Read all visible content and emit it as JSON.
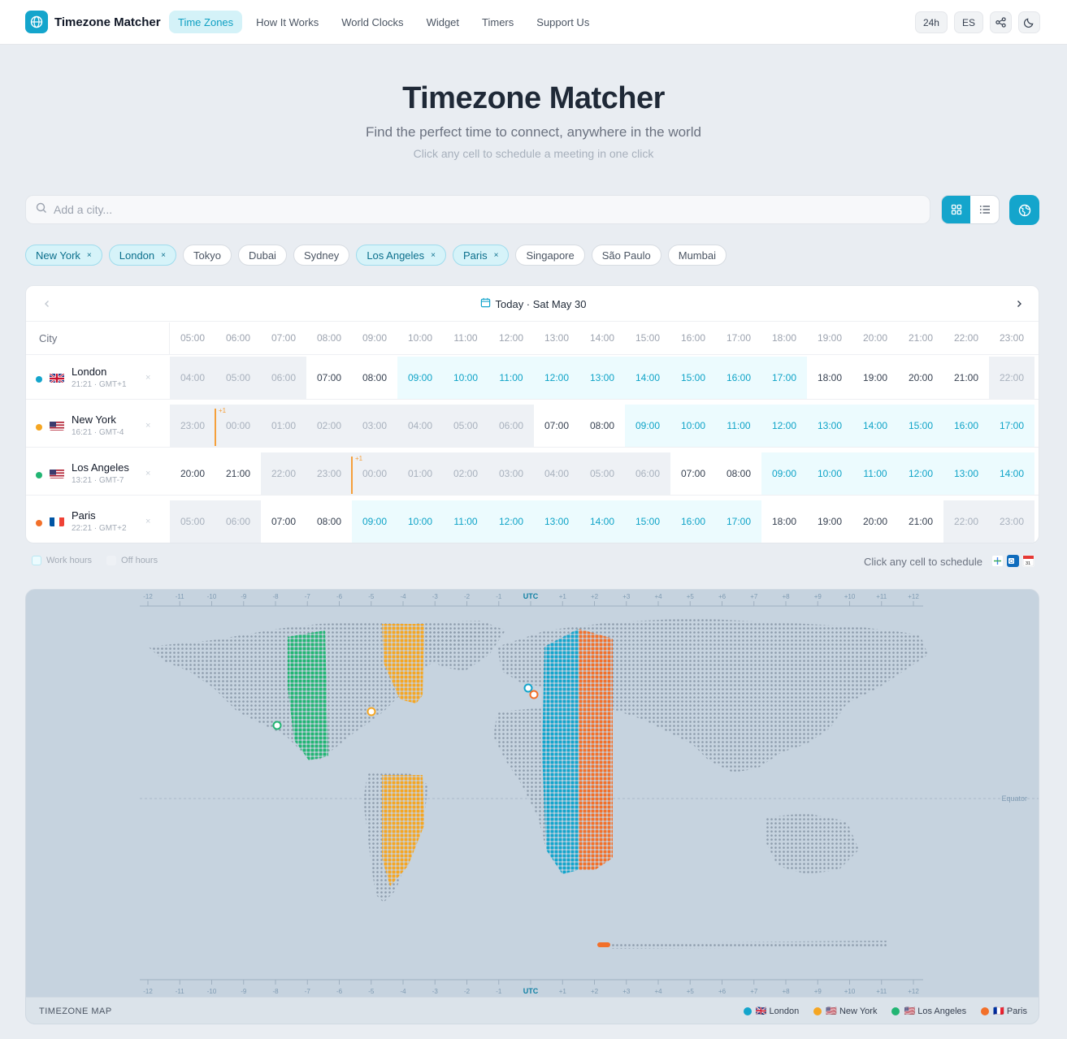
{
  "app": {
    "name": "Timezone Matcher",
    "brand_color": "#14a5cc"
  },
  "nav": [
    {
      "label": "Time Zones",
      "active": true
    },
    {
      "label": "How It Works",
      "active": false
    },
    {
      "label": "World Clocks",
      "active": false
    },
    {
      "label": "Widget",
      "active": false
    },
    {
      "label": "Timers",
      "active": false
    },
    {
      "label": "Support Us",
      "active": false
    }
  ],
  "header_controls": {
    "format": "24h",
    "language": "ES",
    "share_icon": "share-icon",
    "theme_icon": "moon-icon"
  },
  "hero": {
    "title": "Timezone Matcher",
    "subtitle": "Find the perfect time to connect, anywhere in the world",
    "hint": "Click any cell to schedule a meeting in one click"
  },
  "search": {
    "placeholder": "Add a city..."
  },
  "chips": [
    {
      "label": "New York",
      "selected": true
    },
    {
      "label": "London",
      "selected": true
    },
    {
      "label": "Tokyo",
      "selected": false
    },
    {
      "label": "Dubai",
      "selected": false
    },
    {
      "label": "Sydney",
      "selected": false
    },
    {
      "label": "Los Angeles",
      "selected": true
    },
    {
      "label": "Paris",
      "selected": true
    },
    {
      "label": "Singapore",
      "selected": false
    },
    {
      "label": "São Paulo",
      "selected": false
    },
    {
      "label": "Mumbai",
      "selected": false
    }
  ],
  "grid": {
    "date_label": "Today · Sat May 30",
    "city_header": "City",
    "hours": [
      "05:00",
      "06:00",
      "07:00",
      "08:00",
      "09:00",
      "10:00",
      "11:00",
      "12:00",
      "13:00",
      "14:00",
      "15:00",
      "16:00",
      "17:00",
      "18:00",
      "19:00",
      "20:00",
      "21:00",
      "22:00",
      "23:00"
    ],
    "rows": [
      {
        "name": "London",
        "meta": "21:21 · GMT+1",
        "color": "#14a5cc",
        "flag": "uk",
        "times": [
          "04:00",
          "05:00",
          "06:00",
          "07:00",
          "08:00",
          "09:00",
          "10:00",
          "11:00",
          "12:00",
          "13:00",
          "14:00",
          "15:00",
          "16:00",
          "17:00",
          "18:00",
          "19:00",
          "20:00",
          "21:00",
          "22:00"
        ],
        "kinds": [
          "off",
          "off",
          "off",
          "normal",
          "normal",
          "work",
          "work",
          "work",
          "work",
          "work",
          "work",
          "work",
          "work",
          "work",
          "normal",
          "normal",
          "normal",
          "normal",
          "off"
        ],
        "day_change_index": null
      },
      {
        "name": "New York",
        "meta": "16:21 · GMT-4",
        "color": "#f5a623",
        "flag": "us",
        "times": [
          "23:00",
          "00:00",
          "01:00",
          "02:00",
          "03:00",
          "04:00",
          "05:00",
          "06:00",
          "07:00",
          "08:00",
          "09:00",
          "10:00",
          "11:00",
          "12:00",
          "13:00",
          "14:00",
          "15:00",
          "16:00",
          "17:00"
        ],
        "kinds": [
          "off",
          "off",
          "off",
          "off",
          "off",
          "off",
          "off",
          "off",
          "normal",
          "normal",
          "work",
          "work",
          "work",
          "work",
          "work",
          "work",
          "work",
          "work",
          "work"
        ],
        "day_change_index": 1,
        "day_change_label": "+1"
      },
      {
        "name": "Los Angeles",
        "meta": "13:21 · GMT-7",
        "color": "#22b573",
        "flag": "us",
        "times": [
          "20:00",
          "21:00",
          "22:00",
          "23:00",
          "00:00",
          "01:00",
          "02:00",
          "03:00",
          "04:00",
          "05:00",
          "06:00",
          "07:00",
          "08:00",
          "09:00",
          "10:00",
          "11:00",
          "12:00",
          "13:00",
          "14:00"
        ],
        "kinds": [
          "normal",
          "normal",
          "off",
          "off",
          "off",
          "off",
          "off",
          "off",
          "off",
          "off",
          "off",
          "normal",
          "normal",
          "work",
          "work",
          "work",
          "work",
          "work",
          "work"
        ],
        "day_change_index": 4,
        "day_change_label": "+1"
      },
      {
        "name": "Paris",
        "meta": "22:21 · GMT+2",
        "color": "#f2702a",
        "flag": "fr",
        "times": [
          "05:00",
          "06:00",
          "07:00",
          "08:00",
          "09:00",
          "10:00",
          "11:00",
          "12:00",
          "13:00",
          "14:00",
          "15:00",
          "16:00",
          "17:00",
          "18:00",
          "19:00",
          "20:00",
          "21:00",
          "22:00",
          "23:00"
        ],
        "kinds": [
          "off",
          "off",
          "normal",
          "normal",
          "work",
          "work",
          "work",
          "work",
          "work",
          "work",
          "work",
          "work",
          "work",
          "normal",
          "normal",
          "normal",
          "normal",
          "off",
          "off"
        ],
        "day_change_index": null
      }
    ],
    "legend": {
      "work": "Work hours",
      "off": "Off hours"
    },
    "schedule_hint": "Click any cell to schedule"
  },
  "map": {
    "title": "TIMEZONE MAP",
    "equator_label": "Equator",
    "offsets": [
      "-12",
      "-11",
      "-10",
      "-9",
      "-8",
      "-7",
      "-6",
      "-5",
      "-4",
      "-3",
      "-2",
      "-1",
      "UTC",
      "+1",
      "+2",
      "+3",
      "+4",
      "+5",
      "+6",
      "+7",
      "+8",
      "+9",
      "+10",
      "+11",
      "+12"
    ],
    "legend": [
      {
        "label": "🇬🇧 London",
        "color": "#14a5cc"
      },
      {
        "label": "🇺🇸 New York",
        "color": "#f5a623"
      },
      {
        "label": "🇺🇸 Los Angeles",
        "color": "#22b573"
      },
      {
        "label": "🇫🇷 Paris",
        "color": "#f2702a"
      }
    ]
  }
}
